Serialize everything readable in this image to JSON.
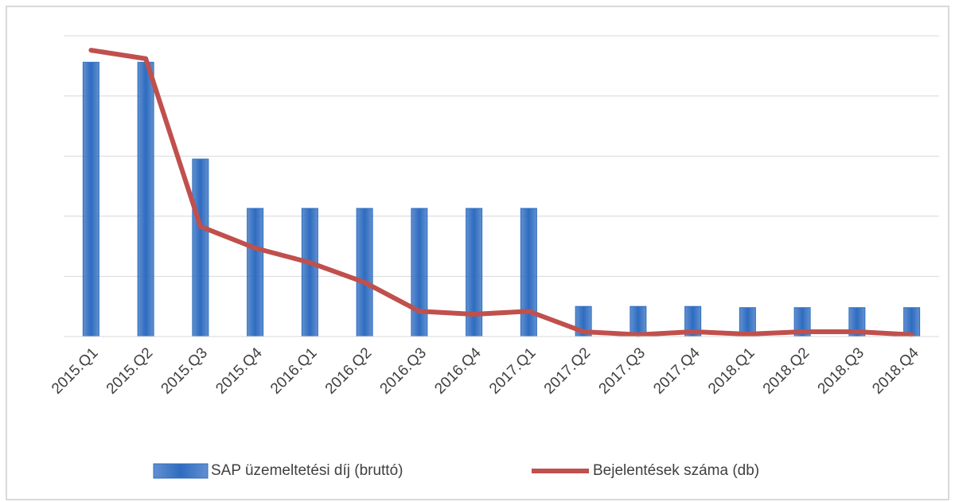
{
  "chart_data": {
    "type": "bar",
    "categories": [
      "2015.Q1",
      "2015.Q2",
      "2015.Q3",
      "2015.Q4",
      "2016.Q1",
      "2016.Q2",
      "2016.Q3",
      "2016.Q4",
      "2017.Q1",
      "2017.Q2",
      "2017.Q3",
      "2017.Q4",
      "2018.Q1",
      "2018.Q2",
      "2018.Q3",
      "2018.Q4"
    ],
    "series": [
      {
        "name": "SAP üzemeltetési díj (bruttó)",
        "type": "bar",
        "color": "#2e6cc0",
        "values": [
          4.56,
          4.56,
          2.95,
          2.13,
          2.13,
          2.13,
          2.13,
          2.13,
          2.13,
          0.5,
          0.5,
          0.5,
          0.48,
          0.48,
          0.48,
          0.48
        ]
      },
      {
        "name": "Bejelentések száma (db)",
        "type": "line",
        "color": "#c0504d",
        "values": [
          4.76,
          4.62,
          1.83,
          1.47,
          1.23,
          0.9,
          0.42,
          0.37,
          0.42,
          0.08,
          0.03,
          0.08,
          0.04,
          0.08,
          0.08,
          0.03
        ]
      }
    ],
    "ylim": [
      0,
      5
    ],
    "yticks": [
      0,
      1,
      2,
      3,
      4,
      5
    ],
    "grid": true,
    "legend": "bottom"
  }
}
